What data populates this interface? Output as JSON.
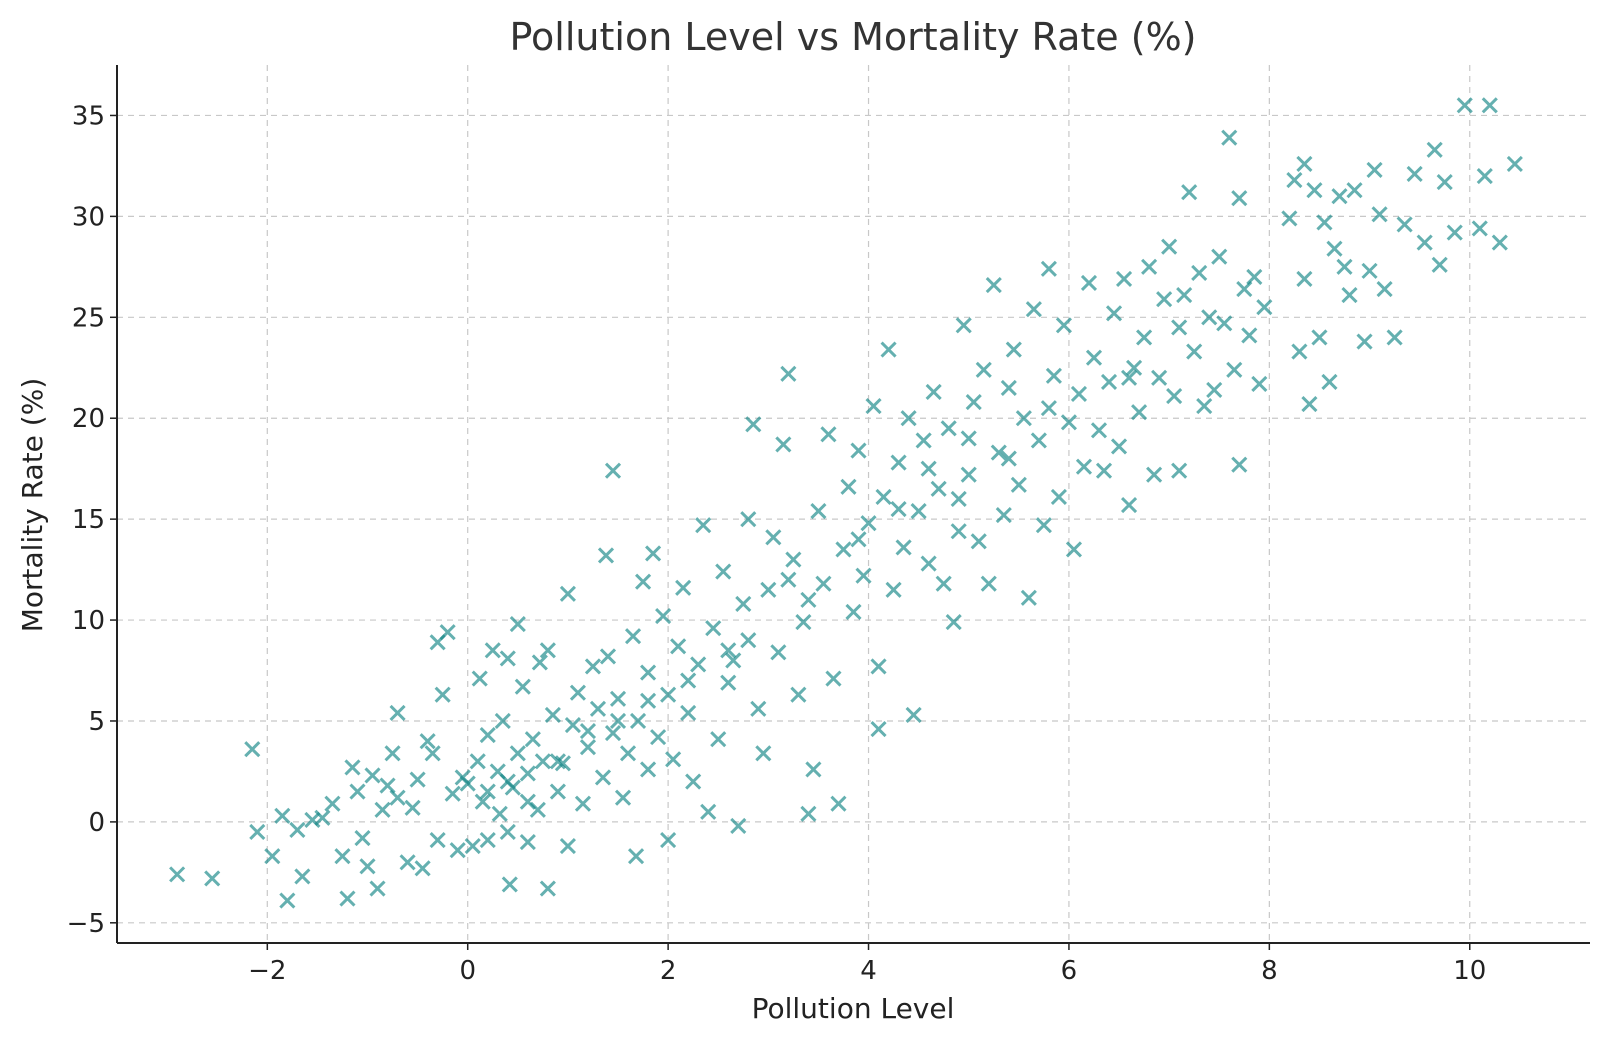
{
  "chart_data": {
    "type": "scatter",
    "title": "Pollution Level vs Mortality Rate (%)",
    "xlabel": "Pollution Level",
    "ylabel": "Mortality Rate (%)",
    "xlim": [
      -3.5,
      11.2
    ],
    "ylim": [
      -6,
      37.5
    ],
    "xticks": [
      -2,
      0,
      2,
      4,
      6,
      8,
      10
    ],
    "yticks": [
      -5,
      0,
      5,
      10,
      15,
      20,
      25,
      30,
      35
    ],
    "xtick_labels": [
      "−2",
      "0",
      "2",
      "4",
      "6",
      "8",
      "10"
    ],
    "ytick_labels": [
      "−5",
      "0",
      "5",
      "10",
      "15",
      "20",
      "25",
      "30",
      "35"
    ],
    "grid": true,
    "marker": "x",
    "color": "#138585",
    "alpha": 0.65,
    "points": [
      [
        -2.9,
        -2.6
      ],
      [
        -2.55,
        -2.8
      ],
      [
        -2.15,
        3.6
      ],
      [
        -2.1,
        -0.5
      ],
      [
        -1.95,
        -1.7
      ],
      [
        -1.85,
        0.3
      ],
      [
        -1.8,
        -3.9
      ],
      [
        -1.7,
        -0.4
      ],
      [
        -1.65,
        -2.7
      ],
      [
        -1.55,
        0.1
      ],
      [
        -1.45,
        0.2
      ],
      [
        -1.35,
        0.9
      ],
      [
        -1.25,
        -1.7
      ],
      [
        -1.2,
        -3.8
      ],
      [
        -1.15,
        2.7
      ],
      [
        -1.1,
        1.5
      ],
      [
        -1.05,
        -0.8
      ],
      [
        -1.0,
        -2.2
      ],
      [
        -0.95,
        2.3
      ],
      [
        -0.9,
        -3.3
      ],
      [
        -0.85,
        0.6
      ],
      [
        -0.8,
        1.8
      ],
      [
        -0.75,
        3.4
      ],
      [
        -0.7,
        1.2
      ],
      [
        -0.7,
        5.4
      ],
      [
        -0.6,
        -2.0
      ],
      [
        -0.55,
        0.7
      ],
      [
        -0.5,
        2.1
      ],
      [
        -0.45,
        -2.3
      ],
      [
        -0.4,
        4.0
      ],
      [
        -0.35,
        3.4
      ],
      [
        -0.3,
        8.9
      ],
      [
        -0.3,
        -0.9
      ],
      [
        -0.25,
        6.3
      ],
      [
        -0.2,
        9.4
      ],
      [
        -0.15,
        1.4
      ],
      [
        -0.1,
        -1.4
      ],
      [
        -0.05,
        2.2
      ],
      [
        0.0,
        1.9
      ],
      [
        0.05,
        -1.2
      ],
      [
        0.1,
        3.0
      ],
      [
        0.12,
        7.1
      ],
      [
        0.15,
        1.0
      ],
      [
        0.2,
        4.3
      ],
      [
        0.2,
        -0.9
      ],
      [
        0.25,
        8.5
      ],
      [
        0.3,
        2.5
      ],
      [
        0.32,
        0.4
      ],
      [
        0.35,
        5.0
      ],
      [
        0.4,
        -0.5
      ],
      [
        0.4,
        8.1
      ],
      [
        0.42,
        -3.1
      ],
      [
        0.45,
        1.7
      ],
      [
        0.5,
        3.4
      ],
      [
        0.5,
        9.8
      ],
      [
        0.55,
        6.7
      ],
      [
        0.6,
        -1.0
      ],
      [
        0.6,
        2.4
      ],
      [
        0.65,
        4.1
      ],
      [
        0.7,
        0.6
      ],
      [
        0.72,
        7.9
      ],
      [
        0.75,
        3.0
      ],
      [
        0.8,
        -3.3
      ],
      [
        0.8,
        8.5
      ],
      [
        0.85,
        5.3
      ],
      [
        0.9,
        1.5
      ],
      [
        0.95,
        2.9
      ],
      [
        1.0,
        -1.2
      ],
      [
        1.0,
        11.3
      ],
      [
        1.05,
        4.8
      ],
      [
        1.1,
        6.4
      ],
      [
        1.15,
        0.9
      ],
      [
        1.2,
        3.7
      ],
      [
        1.25,
        7.7
      ],
      [
        1.3,
        5.6
      ],
      [
        1.35,
        2.2
      ],
      [
        1.38,
        13.2
      ],
      [
        1.4,
        8.2
      ],
      [
        1.45,
        4.4
      ],
      [
        1.45,
        17.4
      ],
      [
        1.5,
        6.1
      ],
      [
        1.55,
        1.2
      ],
      [
        1.6,
        3.4
      ],
      [
        1.65,
        9.2
      ],
      [
        1.68,
        -1.7
      ],
      [
        1.7,
        5.0
      ],
      [
        1.75,
        11.9
      ],
      [
        1.8,
        2.6
      ],
      [
        1.8,
        7.4
      ],
      [
        1.85,
        13.3
      ],
      [
        1.9,
        4.2
      ],
      [
        1.95,
        10.2
      ],
      [
        2.0,
        -0.9
      ],
      [
        2.0,
        6.3
      ],
      [
        2.05,
        3.1
      ],
      [
        2.1,
        8.7
      ],
      [
        2.15,
        11.6
      ],
      [
        2.2,
        5.4
      ],
      [
        2.25,
        2.0
      ],
      [
        2.3,
        7.8
      ],
      [
        2.35,
        14.7
      ],
      [
        2.4,
        0.5
      ],
      [
        2.45,
        9.6
      ],
      [
        2.5,
        4.1
      ],
      [
        2.55,
        12.4
      ],
      [
        2.6,
        6.9
      ],
      [
        2.65,
        8.0
      ],
      [
        2.7,
        -0.2
      ],
      [
        2.75,
        10.8
      ],
      [
        2.8,
        15.0
      ],
      [
        2.85,
        19.7
      ],
      [
        2.9,
        5.6
      ],
      [
        2.95,
        3.4
      ],
      [
        3.0,
        11.5
      ],
      [
        3.05,
        14.1
      ],
      [
        3.1,
        8.4
      ],
      [
        3.15,
        18.7
      ],
      [
        3.2,
        22.2
      ],
      [
        3.25,
        13.0
      ],
      [
        3.3,
        6.3
      ],
      [
        3.35,
        9.9
      ],
      [
        3.4,
        0.4
      ],
      [
        3.45,
        2.6
      ],
      [
        3.5,
        15.4
      ],
      [
        3.55,
        11.8
      ],
      [
        3.6,
        19.2
      ],
      [
        3.65,
        7.1
      ],
      [
        3.7,
        0.9
      ],
      [
        3.75,
        13.5
      ],
      [
        3.8,
        16.6
      ],
      [
        3.85,
        10.4
      ],
      [
        3.9,
        18.4
      ],
      [
        3.95,
        12.2
      ],
      [
        4.0,
        14.8
      ],
      [
        4.05,
        20.6
      ],
      [
        4.1,
        4.6
      ],
      [
        4.1,
        7.7
      ],
      [
        4.15,
        16.1
      ],
      [
        4.2,
        23.4
      ],
      [
        4.25,
        11.5
      ],
      [
        4.3,
        17.8
      ],
      [
        4.35,
        13.6
      ],
      [
        4.4,
        20.0
      ],
      [
        4.45,
        5.3
      ],
      [
        4.5,
        15.4
      ],
      [
        4.55,
        18.9
      ],
      [
        4.6,
        12.8
      ],
      [
        4.65,
        21.3
      ],
      [
        4.7,
        16.5
      ],
      [
        4.75,
        11.8
      ],
      [
        4.8,
        19.5
      ],
      [
        4.85,
        9.9
      ],
      [
        4.9,
        14.4
      ],
      [
        4.95,
        24.6
      ],
      [
        5.0,
        17.2
      ],
      [
        5.05,
        20.8
      ],
      [
        5.1,
        13.9
      ],
      [
        5.15,
        22.4
      ],
      [
        5.2,
        11.8
      ],
      [
        5.25,
        26.6
      ],
      [
        5.3,
        18.3
      ],
      [
        5.35,
        15.2
      ],
      [
        5.4,
        21.5
      ],
      [
        5.45,
        23.4
      ],
      [
        5.5,
        16.7
      ],
      [
        5.55,
        20.0
      ],
      [
        5.6,
        11.1
      ],
      [
        5.65,
        25.4
      ],
      [
        5.7,
        18.9
      ],
      [
        5.75,
        14.7
      ],
      [
        5.8,
        27.4
      ],
      [
        5.85,
        22.1
      ],
      [
        5.9,
        16.1
      ],
      [
        5.95,
        24.6
      ],
      [
        6.0,
        19.8
      ],
      [
        6.05,
        13.5
      ],
      [
        6.1,
        21.2
      ],
      [
        6.15,
        17.6
      ],
      [
        6.2,
        26.7
      ],
      [
        6.25,
        23.0
      ],
      [
        6.3,
        19.4
      ],
      [
        6.35,
        17.4
      ],
      [
        6.4,
        21.8
      ],
      [
        6.45,
        25.2
      ],
      [
        6.5,
        18.6
      ],
      [
        6.55,
        26.9
      ],
      [
        6.6,
        15.7
      ],
      [
        6.65,
        22.5
      ],
      [
        6.7,
        20.3
      ],
      [
        6.75,
        24.0
      ],
      [
        6.8,
        27.5
      ],
      [
        6.85,
        17.2
      ],
      [
        6.9,
        22.0
      ],
      [
        6.95,
        25.9
      ],
      [
        7.0,
        28.5
      ],
      [
        7.05,
        21.1
      ],
      [
        7.1,
        17.4
      ],
      [
        7.15,
        26.1
      ],
      [
        7.2,
        31.2
      ],
      [
        7.25,
        23.3
      ],
      [
        7.3,
        27.2
      ],
      [
        7.35,
        20.6
      ],
      [
        7.4,
        25.0
      ],
      [
        7.45,
        21.4
      ],
      [
        7.5,
        28.0
      ],
      [
        7.55,
        24.7
      ],
      [
        7.6,
        33.9
      ],
      [
        7.65,
        22.4
      ],
      [
        7.7,
        17.7
      ],
      [
        7.7,
        30.9
      ],
      [
        7.75,
        26.4
      ],
      [
        7.8,
        24.1
      ],
      [
        7.85,
        27.0
      ],
      [
        7.9,
        21.7
      ],
      [
        7.95,
        25.5
      ],
      [
        8.2,
        29.9
      ],
      [
        8.25,
        31.8
      ],
      [
        8.3,
        23.3
      ],
      [
        8.35,
        32.6
      ],
      [
        8.35,
        26.9
      ],
      [
        8.4,
        20.7
      ],
      [
        8.45,
        31.3
      ],
      [
        8.5,
        24.0
      ],
      [
        8.55,
        29.7
      ],
      [
        8.6,
        21.8
      ],
      [
        8.65,
        28.4
      ],
      [
        8.7,
        31.0
      ],
      [
        8.75,
        27.5
      ],
      [
        8.8,
        26.1
      ],
      [
        8.85,
        31.3
      ],
      [
        8.95,
        23.8
      ],
      [
        9.0,
        27.3
      ],
      [
        9.05,
        32.3
      ],
      [
        9.1,
        30.1
      ],
      [
        9.15,
        26.4
      ],
      [
        9.25,
        24.0
      ],
      [
        9.35,
        29.6
      ],
      [
        9.45,
        32.1
      ],
      [
        9.55,
        28.7
      ],
      [
        9.65,
        33.3
      ],
      [
        9.7,
        27.6
      ],
      [
        9.75,
        31.7
      ],
      [
        9.85,
        29.2
      ],
      [
        9.95,
        35.5
      ],
      [
        10.1,
        29.4
      ],
      [
        10.15,
        32.0
      ],
      [
        10.2,
        35.5
      ],
      [
        10.3,
        28.7
      ],
      [
        10.45,
        32.6
      ],
      [
        5.0,
        19.0
      ],
      [
        4.6,
        17.5
      ],
      [
        5.4,
        18.0
      ],
      [
        3.9,
        14.0
      ],
      [
        4.3,
        15.5
      ],
      [
        3.2,
        12.0
      ],
      [
        2.2,
        7.0
      ],
      [
        1.2,
        4.5
      ],
      [
        0.4,
        2.0
      ],
      [
        0.9,
        3.0
      ],
      [
        1.8,
        6.0
      ],
      [
        2.6,
        8.5
      ],
      [
        3.4,
        11.0
      ],
      [
        4.9,
        16.0
      ],
      [
        5.8,
        20.5
      ],
      [
        6.6,
        22.0
      ],
      [
        7.1,
        24.5
      ],
      [
        0.2,
        1.5
      ],
      [
        0.6,
        1.0
      ],
      [
        1.5,
        5.0
      ],
      [
        2.8,
        9.0
      ]
    ]
  }
}
